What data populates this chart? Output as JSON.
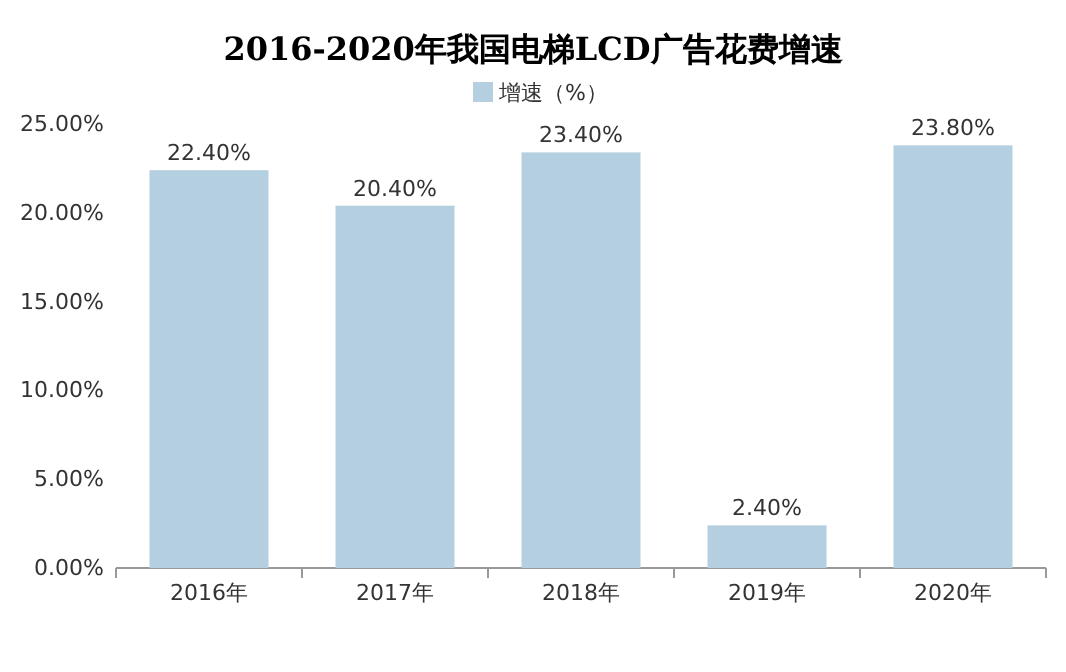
{
  "chart_data": {
    "type": "bar",
    "title": "2016-2020年我国电梯LCD广告花费增速",
    "categories": [
      "2016年",
      "2017年",
      "2018年",
      "2019年",
      "2020年"
    ],
    "series": [
      {
        "name": "增速（%）",
        "color": "#b4cfe0",
        "values": [
          22.4,
          20.4,
          23.4,
          2.4,
          23.8
        ],
        "value_labels": [
          "22.40%",
          "20.40%",
          "23.40%",
          "2.40%",
          "23.80%"
        ]
      }
    ],
    "ylim": [
      0,
      25
    ],
    "yticks": [
      {
        "value": 0,
        "label": "0.00%"
      },
      {
        "value": 5,
        "label": "5.00%"
      },
      {
        "value": 10,
        "label": "10.00%"
      },
      {
        "value": 15,
        "label": "15.00%"
      },
      {
        "value": 20,
        "label": "20.00%"
      },
      {
        "value": 25,
        "label": "25.00%"
      }
    ],
    "grid": false,
    "legend": "top"
  }
}
